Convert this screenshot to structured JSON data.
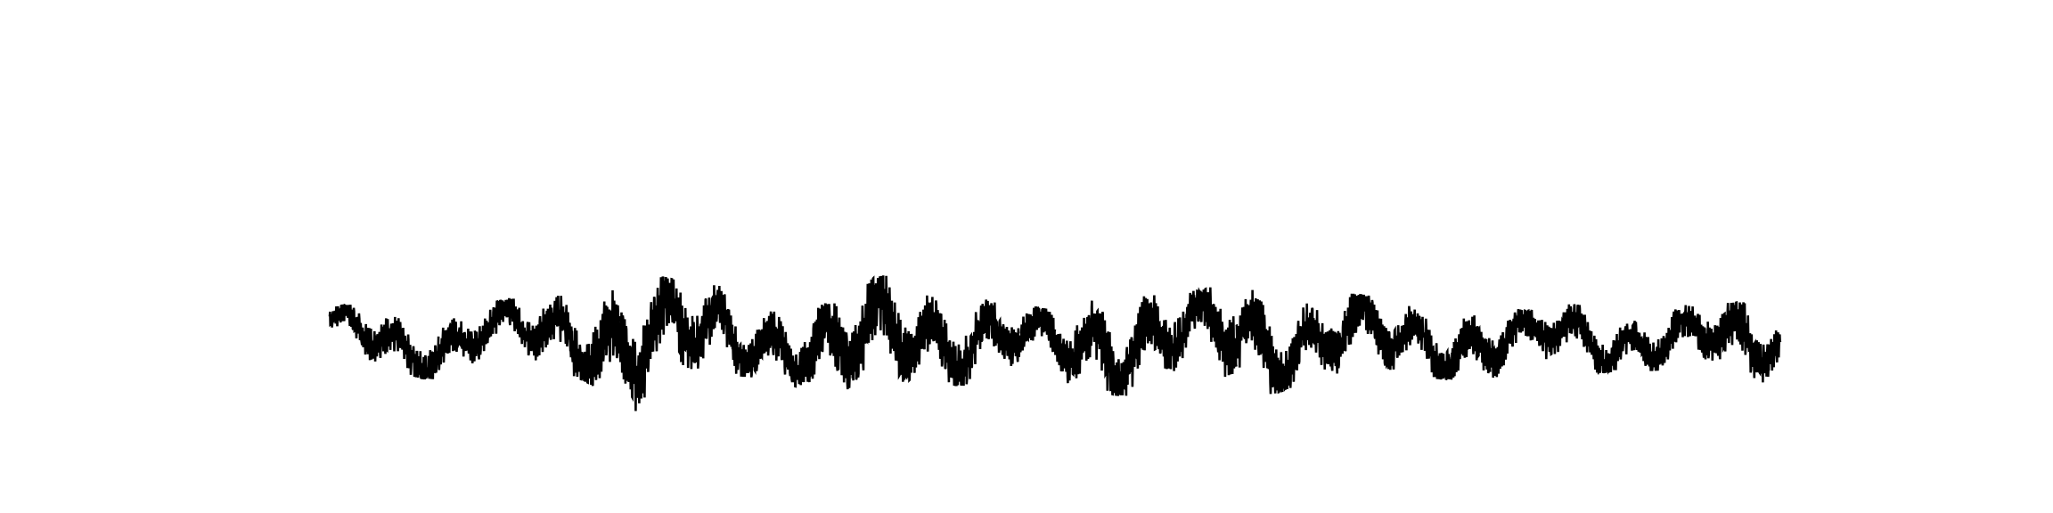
{
  "chart_data": {
    "type": "line",
    "title": "",
    "xlabel": "",
    "ylabel": "",
    "grid": false,
    "legend": "none",
    "axes_visible": false,
    "xlim": [
      0,
      1000
    ],
    "ylim": [
      -1.5,
      1.5
    ],
    "series": [
      {
        "color": "#000000",
        "segments": 40,
        "x": [
          0,
          25,
          50,
          75,
          100,
          125,
          150,
          175,
          200,
          225,
          250,
          275,
          300,
          325,
          350,
          375,
          400,
          425,
          450,
          475,
          500,
          525,
          550,
          575,
          600,
          625,
          650,
          675,
          700,
          725,
          750,
          775,
          800,
          825,
          850,
          875,
          900,
          925,
          950,
          975,
          1000
        ],
        "upper": [
          0.3,
          0.35,
          0.25,
          0.2,
          0.32,
          0.4,
          0.45,
          0.7,
          0.72,
          0.68,
          0.6,
          0.55,
          0.45,
          0.3,
          0.35,
          0.66,
          0.78,
          0.6,
          0.42,
          0.3,
          0.28,
          0.6,
          0.64,
          0.5,
          0.5,
          0.66,
          0.62,
          0.45,
          0.48,
          0.4,
          0.38,
          0.35,
          0.36,
          0.25,
          0.35,
          0.3,
          0.28,
          0.32,
          0.34,
          0.36,
          0.3
        ],
        "lower": [
          -0.25,
          -0.4,
          -0.55,
          -0.6,
          -0.45,
          -0.4,
          -0.5,
          -0.6,
          -0.9,
          -1.1,
          -0.8,
          -0.55,
          -0.58,
          -0.7,
          -1.2,
          -0.9,
          -0.6,
          -0.65,
          -0.7,
          -0.55,
          -0.6,
          -0.75,
          -0.8,
          -0.7,
          -0.62,
          -0.7,
          -0.78,
          -0.62,
          -0.6,
          -0.65,
          -0.55,
          -0.6,
          -0.58,
          -0.5,
          -0.48,
          -0.52,
          -0.5,
          -0.48,
          -0.52,
          -0.9,
          -0.4
        ]
      }
    ]
  }
}
